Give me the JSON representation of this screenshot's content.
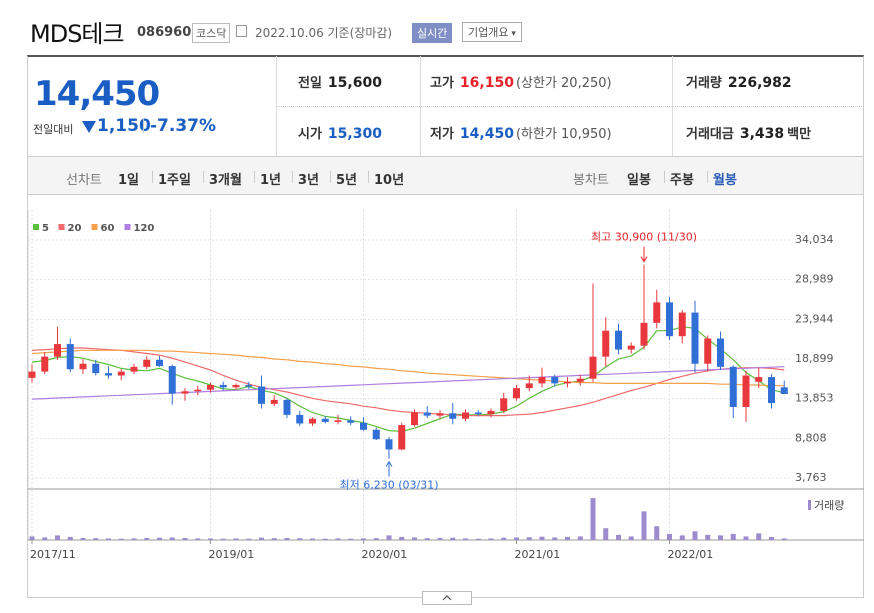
{
  "header": {
    "name": "MDS테크",
    "code": "086960",
    "market": "코스닥",
    "date": "2022.10.06 기준(장마감)",
    "realtime": "실시간",
    "company": "기업개요"
  },
  "quote": {
    "price": "14,450",
    "change_label": "전일대비",
    "change": "1,150",
    "change_rate": "-7.37%",
    "items": [
      {
        "label": "전일",
        "value": "15,600"
      },
      {
        "label": "고가",
        "value": "16,150",
        "note": "(상한가 20,250)"
      },
      {
        "label": "거래량",
        "value": "226,982"
      },
      {
        "label": "시가",
        "value": "15,300"
      },
      {
        "label": "저가",
        "value": "14,450",
        "note": "(하한가 10,950)"
      },
      {
        "label": "거래대금",
        "value": "3,438",
        "unit": "백만"
      }
    ]
  },
  "toolbar": {
    "line_label": "선차트",
    "periods": [
      "1일",
      "1주일",
      "3개월",
      "1년",
      "3년",
      "5년",
      "10년"
    ],
    "candle_label": "봉차트",
    "candle_periods": [
      "일봉",
      "주봉",
      "월봉"
    ]
  },
  "chart_data": {
    "type": "candlestick",
    "categories": [
      "2017/11",
      null,
      null,
      null,
      null,
      null,
      null,
      null,
      null,
      null,
      null,
      null,
      null,
      null,
      "2019/01",
      null,
      null,
      null,
      null,
      null,
      null,
      null,
      null,
      null,
      null,
      null,
      "2020/01",
      null,
      null,
      null,
      null,
      null,
      null,
      null,
      null,
      null,
      null,
      null,
      "2021/01",
      null,
      null,
      null,
      null,
      null,
      null,
      null,
      null,
      null,
      null,
      null,
      "2022/01",
      null,
      null,
      null,
      null,
      null,
      null,
      null,
      null,
      null
    ],
    "open": [
      16500,
      17300,
      19200,
      20800,
      17600,
      18300,
      17100,
      16800,
      17300,
      17900,
      18800,
      18000,
      14500,
      14800,
      15000,
      15600,
      15300,
      15600,
      15400,
      13200,
      13700,
      11800,
      10700,
      11300,
      10900,
      11100,
      10800,
      9900,
      8700,
      7400,
      10500,
      12100,
      11700,
      12000,
      11300,
      12100,
      11900,
      12300,
      13900,
      15200,
      15800,
      16600,
      15800,
      16000,
      16400,
      19200,
      22500,
      20100,
      20600,
      23500,
      26100,
      21800,
      24800,
      18300,
      21500,
      17900,
      12800,
      16000,
      16600,
      15300
    ],
    "high": [
      18200,
      19800,
      23000,
      21500,
      18900,
      18800,
      18000,
      17600,
      18300,
      19300,
      19300,
      18200,
      15200,
      15500,
      15900,
      16000,
      15800,
      16000,
      16800,
      14300,
      13900,
      12300,
      11500,
      11600,
      11800,
      11600,
      11500,
      10200,
      9000,
      10800,
      12500,
      12900,
      12400,
      13300,
      12500,
      12400,
      12600,
      14600,
      15600,
      16800,
      17800,
      16900,
      16600,
      16900,
      28500,
      24200,
      23400,
      21000,
      30900,
      27700,
      26800,
      25100,
      26300,
      21900,
      22400,
      18100,
      17400,
      17800,
      17000,
      16150
    ],
    "low": [
      15900,
      17000,
      18800,
      17200,
      17000,
      16800,
      16400,
      16200,
      17000,
      17600,
      17900,
      13100,
      13600,
      14300,
      14600,
      14900,
      15000,
      15100,
      12600,
      12900,
      11400,
      10400,
      10400,
      10700,
      10600,
      10500,
      9800,
      8600,
      6230,
      7300,
      10300,
      11400,
      11300,
      10600,
      11000,
      11600,
      11500,
      12000,
      13600,
      14800,
      15300,
      15400,
      15300,
      15500,
      16000,
      17900,
      19500,
      19600,
      20100,
      22800,
      21300,
      20900,
      17200,
      17300,
      17500,
      11400,
      10900,
      15200,
      12600,
      14450
    ],
    "close": [
      17300,
      19200,
      20800,
      17600,
      18300,
      17100,
      16800,
      17300,
      17900,
      18800,
      18000,
      14500,
      14800,
      15000,
      15600,
      15300,
      15600,
      15400,
      13200,
      13700,
      11800,
      10700,
      11300,
      10900,
      11100,
      10800,
      9900,
      8700,
      7400,
      10500,
      12100,
      11700,
      12000,
      11300,
      12100,
      11900,
      12300,
      13900,
      15200,
      15800,
      16600,
      15800,
      16000,
      16400,
      19200,
      22500,
      20100,
      20600,
      23500,
      26100,
      21800,
      24800,
      18300,
      21500,
      17900,
      12800,
      16800,
      16600,
      13300,
      14450
    ],
    "up_color": "#e8383d",
    "down_color": "#2f6fd6",
    "moving_averages": [
      {
        "name": "5",
        "color": "#5cbf3c",
        "values": [
          18500,
          18700,
          19100,
          19200,
          19000,
          18600,
          18200,
          17700,
          17500,
          17400,
          17700,
          17100,
          16500,
          16100,
          15600,
          15100,
          15000,
          15400,
          14900,
          14600,
          13900,
          12900,
          12100,
          11600,
          11400,
          11100,
          10800,
          10300,
          9800,
          9700,
          10100,
          10700,
          11300,
          11900,
          11800,
          11800,
          11900,
          12200,
          12900,
          13900,
          14800,
          15500,
          15900,
          16100,
          16700,
          17900,
          18900,
          19300,
          20400,
          22500,
          22500,
          23000,
          22800,
          21400,
          20200,
          18800,
          17200,
          16100,
          15000,
          14600
        ]
      },
      {
        "name": "20",
        "color": "#f06a6a",
        "values": [
          20000,
          20100,
          20200,
          20300,
          20300,
          20200,
          20100,
          20000,
          19800,
          19600,
          19400,
          19000,
          18500,
          18000,
          17500,
          16800,
          16200,
          15700,
          15300,
          15000,
          14700,
          14300,
          13900,
          13600,
          13400,
          13200,
          12900,
          12700,
          12400,
          12200,
          12100,
          12000,
          11900,
          11800,
          11700,
          11700,
          11700,
          11700,
          11800,
          11900,
          12100,
          12400,
          12700,
          13000,
          13400,
          13900,
          14400,
          14900,
          15300,
          15800,
          16300,
          16700,
          17100,
          17400,
          17600,
          17700,
          17800,
          17800,
          17700,
          17500
        ]
      },
      {
        "name": "60",
        "color": "#f7a04b",
        "values": [
          19600,
          19700,
          19800,
          19900,
          20000,
          20000,
          20000,
          20000,
          20000,
          20000,
          19900,
          19900,
          19800,
          19700,
          19600,
          19500,
          19400,
          19200,
          19100,
          18900,
          18800,
          18600,
          18500,
          18300,
          18200,
          18000,
          17900,
          17700,
          17600,
          17400,
          17300,
          17100,
          17000,
          16900,
          16800,
          16700,
          16600,
          16500,
          16400,
          16300,
          16200,
          16100,
          16000,
          15900,
          15900,
          15800,
          15800,
          15800,
          15800,
          15800,
          15800,
          15800,
          15800,
          15800,
          15700,
          15700,
          15600,
          15600,
          15500,
          15500
        ]
      },
      {
        "name": "120",
        "color": "#b07ee0",
        "values": [
          13800,
          13870,
          13940,
          14010,
          14080,
          14150,
          14220,
          14290,
          14360,
          14430,
          14500,
          14570,
          14640,
          14710,
          14780,
          14850,
          14920,
          14990,
          15060,
          15130,
          15200,
          15270,
          15340,
          15410,
          15480,
          15550,
          15620,
          15690,
          15760,
          15830,
          15900,
          15970,
          16040,
          16110,
          16180,
          16250,
          16320,
          16390,
          16460,
          16530,
          16600,
          16670,
          16740,
          16810,
          16880,
          16950,
          17020,
          17090,
          17160,
          17230,
          17300,
          17370,
          17440,
          17510,
          17580,
          17650,
          17720,
          17790,
          17860,
          17930
        ]
      }
    ],
    "volume": {
      "name": "거래량",
      "color": "#9c8ccd",
      "ylim": [
        0,
        9000
      ],
      "values": [
        700,
        500,
        900,
        600,
        400,
        350,
        300,
        250,
        300,
        400,
        450,
        500,
        400,
        300,
        300,
        250,
        300,
        250,
        450,
        350,
        400,
        350,
        300,
        250,
        300,
        250,
        300,
        350,
        900,
        600,
        500,
        350,
        400,
        450,
        300,
        250,
        300,
        450,
        500,
        550,
        650,
        500,
        600,
        700,
        8200,
        2300,
        1000,
        700,
        5600,
        2700,
        1200,
        900,
        1700,
        1000,
        900,
        1200,
        700,
        1300,
        600,
        300
      ]
    },
    "ylim": [
      2500,
      35300
    ],
    "yticks": [
      {
        "value": 34034,
        "label": "34,034"
      },
      {
        "value": 28989,
        "label": "28,989"
      },
      {
        "value": 23944,
        "label": "23,944"
      },
      {
        "value": 18899,
        "label": "18,899"
      },
      {
        "value": 13853,
        "label": "13,853"
      },
      {
        "value": 8808,
        "label": "8,808"
      },
      {
        "value": 3763,
        "label": "3,763"
      }
    ],
    "grid": true,
    "high_label": "최고 30,900 (11/30)",
    "low_label": "최저 6,230 (03/31)"
  }
}
